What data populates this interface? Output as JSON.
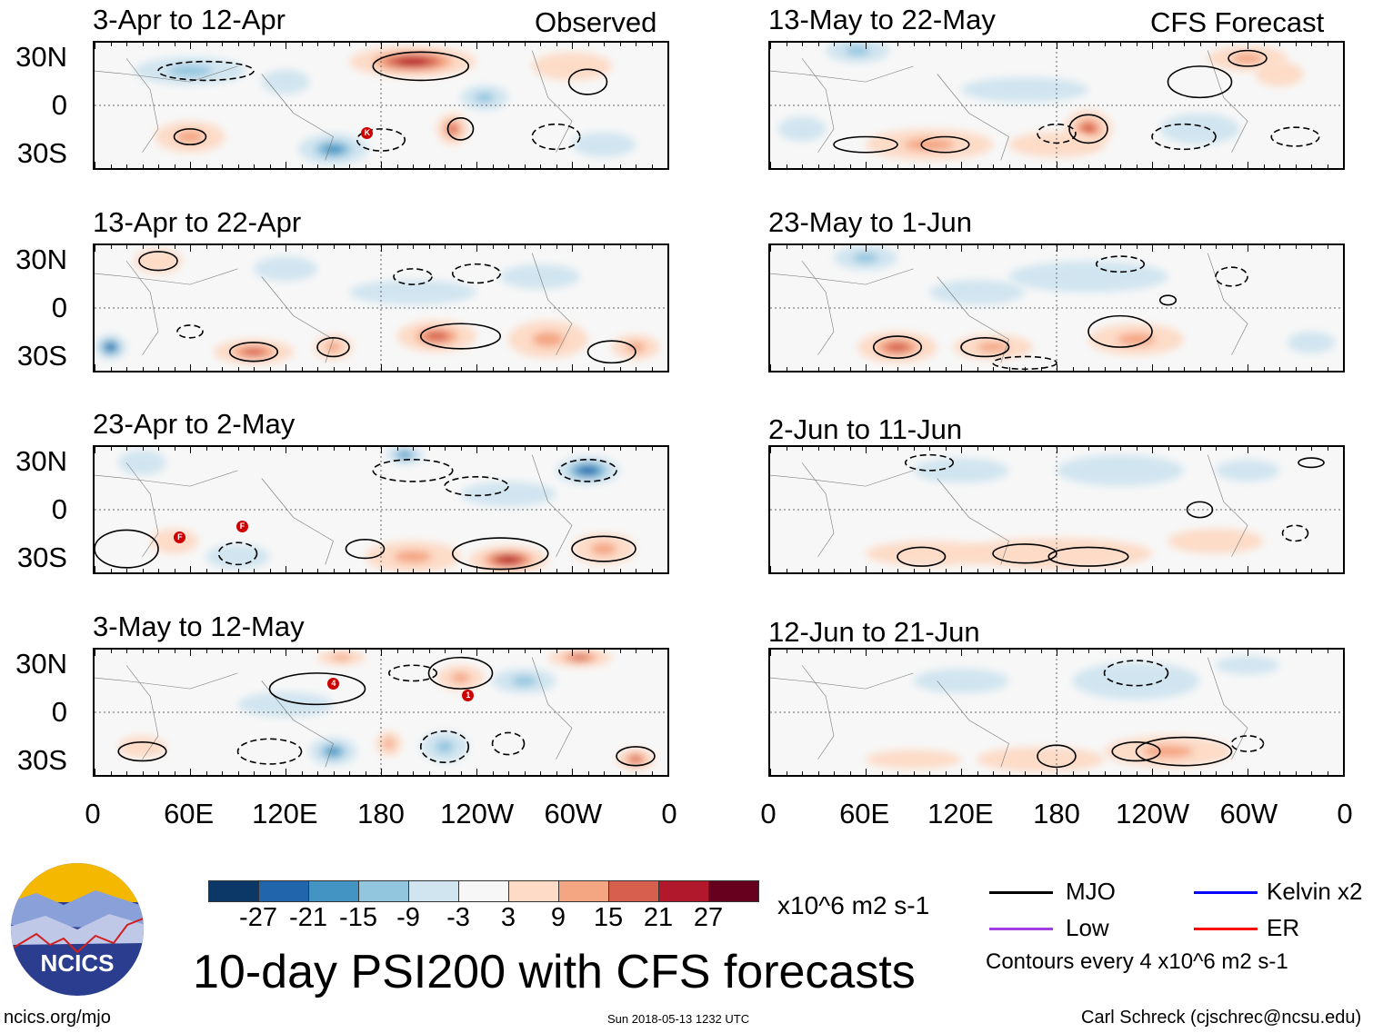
{
  "header": {
    "observed_label": "Observed",
    "forecast_label": "CFS Forecast"
  },
  "axes": {
    "lat_labels": [
      "30N",
      "0",
      "30S"
    ],
    "lon_labels": [
      "0",
      "60E",
      "120E",
      "180",
      "120W",
      "60W",
      "0"
    ],
    "lon_values": [
      0,
      60,
      120,
      180,
      240,
      300,
      360
    ]
  },
  "colorbar": {
    "colors": [
      "#0b3866",
      "#2166ac",
      "#4393c3",
      "#92c5de",
      "#d1e5f0",
      "#f7f7f7",
      "#fddbc7",
      "#f4a582",
      "#d6604d",
      "#b2182b",
      "#67001f"
    ],
    "ticks": [
      "-27",
      "-21",
      "-15",
      "-9",
      "-3",
      "3",
      "9",
      "15",
      "21",
      "27"
    ],
    "edges": [
      -27,
      -21,
      -15,
      -9,
      -3,
      3,
      9,
      15,
      21,
      27
    ],
    "units": "x10^6 m2 s-1"
  },
  "title": "10-day PSI200 with CFS forecasts",
  "legend": {
    "items": [
      {
        "label": "MJO",
        "color": "#000000"
      },
      {
        "label": "Kelvin x2",
        "color": "#0000ff"
      },
      {
        "label": "Low",
        "color": "#a040e0"
      },
      {
        "label": "ER",
        "color": "#ff0000"
      }
    ],
    "note": "Contours every 4 x10^6 m2 s-1"
  },
  "footer": {
    "url": "ncics.org/mjo",
    "timestamp": "Sun 2018-05-13 1232 UTC",
    "credit": "Carl Schreck (cjschrec@ncsu.edu)",
    "logo_text": "NCICS"
  },
  "chart_data": {
    "type": "heatmap",
    "xlim": [
      0,
      360
    ],
    "ylim": [
      -40,
      40
    ],
    "panels": [
      {
        "title": "3-Apr to 12-Apr",
        "kind": "observed",
        "blobs": [
          [
            200,
            28,
            40,
            10,
            24
          ],
          [
            60,
            22,
            35,
            9,
            -15
          ],
          [
            150,
            -28,
            22,
            10,
            -20
          ],
          [
            60,
            -20,
            22,
            10,
            12
          ],
          [
            225,
            -15,
            10,
            10,
            21
          ],
          [
            245,
            5,
            15,
            8,
            -12
          ],
          [
            300,
            25,
            25,
            9,
            9
          ],
          [
            120,
            15,
            15,
            8,
            -6
          ],
          [
            320,
            -25,
            20,
            8,
            -6
          ]
        ],
        "contours": [
          [
            205,
            25,
            30,
            9,
            1
          ],
          [
            60,
            -20,
            10,
            5,
            1
          ],
          [
            230,
            -15,
            8,
            7,
            1
          ],
          [
            310,
            15,
            12,
            8,
            1
          ],
          [
            70,
            22,
            30,
            6,
            -1
          ],
          [
            180,
            -22,
            15,
            7,
            -1
          ],
          [
            290,
            -20,
            15,
            8,
            -1
          ]
        ],
        "cyclones": [
          {
            "lon": 170,
            "lat": -16,
            "label": "K"
          }
        ]
      },
      {
        "title": "13-Apr to 22-Apr",
        "kind": "observed",
        "blobs": [
          [
            10,
            -25,
            10,
            8,
            -27
          ],
          [
            100,
            -28,
            25,
            8,
            18
          ],
          [
            150,
            -25,
            12,
            8,
            12
          ],
          [
            215,
            -18,
            25,
            10,
            21
          ],
          [
            285,
            -20,
            25,
            12,
            15
          ],
          [
            340,
            -25,
            15,
            8,
            12
          ],
          [
            40,
            30,
            15,
            8,
            6
          ],
          [
            200,
            10,
            40,
            8,
            -6
          ],
          [
            280,
            20,
            25,
            8,
            -9
          ],
          [
            120,
            25,
            20,
            8,
            -6
          ]
        ],
        "contours": [
          [
            100,
            -28,
            15,
            6,
            1
          ],
          [
            150,
            -25,
            10,
            6,
            1
          ],
          [
            230,
            -18,
            25,
            8,
            1
          ],
          [
            325,
            -28,
            15,
            7,
            1
          ],
          [
            40,
            30,
            12,
            6,
            1
          ],
          [
            60,
            -15,
            8,
            4,
            -1
          ],
          [
            200,
            20,
            12,
            5,
            -1
          ],
          [
            240,
            22,
            15,
            6,
            -1
          ]
        ],
        "cyclones": []
      },
      {
        "title": "23-Apr to 2-May",
        "kind": "observed",
        "blobs": [
          [
            195,
            35,
            12,
            6,
            -21
          ],
          [
            310,
            25,
            20,
            9,
            -24
          ],
          [
            260,
            10,
            30,
            8,
            -9
          ],
          [
            200,
            -30,
            30,
            10,
            15
          ],
          [
            260,
            -32,
            25,
            9,
            27
          ],
          [
            320,
            -25,
            20,
            10,
            15
          ],
          [
            30,
            30,
            15,
            8,
            -9
          ],
          [
            90,
            -30,
            20,
            8,
            -6
          ],
          [
            50,
            -20,
            15,
            8,
            6
          ]
        ],
        "contours": [
          [
            255,
            -28,
            30,
            10,
            1
          ],
          [
            320,
            -25,
            20,
            8,
            1
          ],
          [
            20,
            -25,
            20,
            12,
            1
          ],
          [
            170,
            -25,
            12,
            6,
            1
          ],
          [
            90,
            -28,
            12,
            7,
            -1
          ],
          [
            310,
            25,
            18,
            7,
            -1
          ],
          [
            200,
            25,
            25,
            7,
            -1
          ],
          [
            240,
            15,
            20,
            6,
            -1
          ]
        ],
        "cyclones": [
          {
            "lon": 53,
            "lat": -16,
            "label": "F"
          },
          {
            "lon": 92,
            "lat": -9,
            "label": "F"
          }
        ]
      },
      {
        "title": "3-May to 12-May",
        "kind": "observed",
        "blobs": [
          [
            305,
            35,
            20,
            6,
            21
          ],
          [
            155,
            35,
            15,
            5,
            15
          ],
          [
            230,
            22,
            15,
            8,
            12
          ],
          [
            150,
            -25,
            15,
            9,
            -18
          ],
          [
            220,
            -22,
            15,
            10,
            -15
          ],
          [
            185,
            -20,
            8,
            8,
            15
          ],
          [
            340,
            -30,
            12,
            7,
            18
          ],
          [
            270,
            20,
            20,
            8,
            -12
          ],
          [
            30,
            -22,
            15,
            7,
            9
          ],
          [
            120,
            5,
            30,
            8,
            -6
          ]
        ],
        "contours": [
          [
            140,
            15,
            30,
            10,
            1
          ],
          [
            230,
            25,
            20,
            10,
            1
          ],
          [
            30,
            -25,
            15,
            6,
            1
          ],
          [
            340,
            -28,
            12,
            6,
            1
          ],
          [
            200,
            25,
            15,
            5,
            -1
          ],
          [
            110,
            -25,
            20,
            8,
            -1
          ],
          [
            220,
            -22,
            15,
            10,
            -1
          ],
          [
            260,
            -20,
            10,
            7,
            -1
          ]
        ],
        "cyclones": [
          {
            "lon": 149,
            "lat": 19,
            "label": "4"
          },
          {
            "lon": 233,
            "lat": 12,
            "label": "1"
          }
        ]
      },
      {
        "title": "13-May to 22-May",
        "kind": "forecast",
        "blobs": [
          [
            55,
            35,
            20,
            8,
            -15
          ],
          [
            200,
            -15,
            15,
            12,
            21
          ],
          [
            100,
            -25,
            40,
            10,
            12
          ],
          [
            180,
            -25,
            30,
            8,
            9
          ],
          [
            300,
            30,
            25,
            8,
            12
          ],
          [
            320,
            20,
            15,
            8,
            9
          ],
          [
            270,
            -15,
            25,
            10,
            -9
          ],
          [
            20,
            -15,
            15,
            8,
            -6
          ],
          [
            160,
            10,
            40,
            8,
            -6
          ]
        ],
        "contours": [
          [
            200,
            -15,
            12,
            9,
            1
          ],
          [
            60,
            -25,
            20,
            5,
            1
          ],
          [
            110,
            -25,
            15,
            5,
            1
          ],
          [
            270,
            15,
            20,
            10,
            1
          ],
          [
            300,
            30,
            12,
            5,
            1
          ],
          [
            180,
            -18,
            12,
            6,
            -1
          ],
          [
            260,
            -20,
            20,
            8,
            -1
          ],
          [
            330,
            -20,
            15,
            6,
            -1
          ]
        ],
        "cyclones": []
      },
      {
        "title": "23-May to 1-Jun",
        "kind": "forecast",
        "blobs": [
          [
            60,
            32,
            20,
            8,
            -15
          ],
          [
            80,
            -25,
            25,
            10,
            18
          ],
          [
            140,
            -25,
            25,
            8,
            12
          ],
          [
            230,
            -20,
            30,
            10,
            12
          ],
          [
            340,
            -22,
            15,
            7,
            -9
          ],
          [
            200,
            20,
            50,
            10,
            -6
          ],
          [
            130,
            10,
            30,
            8,
            -6
          ]
        ],
        "contours": [
          [
            80,
            -25,
            15,
            7,
            1
          ],
          [
            135,
            -25,
            15,
            6,
            1
          ],
          [
            220,
            -15,
            20,
            10,
            1
          ],
          [
            250,
            5,
            5,
            3,
            1
          ],
          [
            220,
            28,
            15,
            5,
            -1
          ],
          [
            290,
            20,
            10,
            6,
            -1
          ],
          [
            160,
            -35,
            20,
            4,
            -1
          ]
        ],
        "cyclones": []
      },
      {
        "title": "2-Jun to 11-Jun",
        "kind": "forecast",
        "blobs": [
          [
            180,
            -28,
            60,
            10,
            9
          ],
          [
            100,
            -28,
            40,
            8,
            6
          ],
          [
            280,
            -20,
            30,
            8,
            6
          ],
          [
            220,
            25,
            40,
            10,
            -6
          ],
          [
            120,
            25,
            30,
            8,
            -6
          ],
          [
            300,
            25,
            20,
            7,
            -6
          ]
        ],
        "contours": [
          [
            160,
            -28,
            20,
            6,
            1
          ],
          [
            200,
            -30,
            25,
            6,
            1
          ],
          [
            95,
            -30,
            15,
            6,
            1
          ],
          [
            270,
            0,
            8,
            5,
            1
          ],
          [
            340,
            30,
            8,
            3,
            1
          ],
          [
            100,
            30,
            15,
            5,
            -1
          ],
          [
            330,
            -15,
            8,
            5,
            -1
          ]
        ],
        "cyclones": []
      },
      {
        "title": "12-Jun to 21-Jun",
        "kind": "forecast",
        "blobs": [
          [
            250,
            -25,
            40,
            10,
            15
          ],
          [
            170,
            -30,
            40,
            8,
            9
          ],
          [
            90,
            -30,
            30,
            6,
            6
          ],
          [
            230,
            20,
            40,
            12,
            -9
          ],
          [
            120,
            20,
            30,
            8,
            -6
          ],
          [
            300,
            30,
            20,
            6,
            -6
          ]
        ],
        "contours": [
          [
            260,
            -25,
            30,
            9,
            1
          ],
          [
            180,
            -28,
            12,
            7,
            1
          ],
          [
            230,
            -25,
            15,
            6,
            1
          ],
          [
            230,
            25,
            20,
            8,
            -1
          ],
          [
            300,
            -20,
            10,
            5,
            -1
          ]
        ],
        "cyclones": []
      }
    ]
  }
}
